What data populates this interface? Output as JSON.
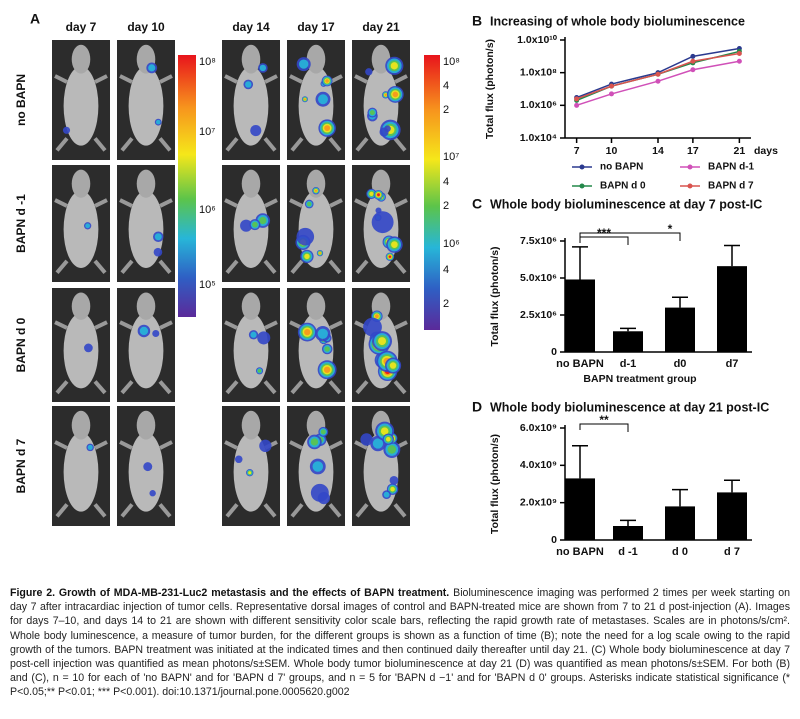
{
  "panel_a": {
    "label": "A",
    "days": [
      "day 7",
      "day 10",
      "day 14",
      "day 17",
      "day 21"
    ],
    "groups": [
      "no BAPN",
      "BAPN d -1",
      "BAPN d 0",
      "BAPN d 7"
    ],
    "scale_left": [
      "10⁸",
      "10⁷",
      "10⁶",
      "10⁵"
    ],
    "scale_right": [
      "10⁸",
      "4",
      "2",
      "10⁷",
      "4",
      "2",
      "10⁶",
      "4",
      "2"
    ]
  },
  "chart_data": [
    {
      "type": "line",
      "panel": "B",
      "title": "Increasing of whole body bioluminescence",
      "y_label": "Total flux (photon/s)",
      "x_label": "days",
      "log_y": true,
      "x": [
        7,
        10,
        14,
        17,
        21
      ],
      "xlim": [
        6,
        22
      ],
      "xticks": [
        7,
        10,
        14,
        17,
        21
      ],
      "ylim": [
        10000,
        10000000000
      ],
      "yticks": [
        {
          "value": 10000,
          "label": "1.0x10⁴"
        },
        {
          "value": 1000000,
          "label": "1.0x10⁶"
        },
        {
          "value": 100000000,
          "label": "1.0x10⁸"
        },
        {
          "value": 10000000000,
          "label": "1.0x10¹⁰"
        }
      ],
      "series": [
        {
          "name": "no BAPN",
          "color": "#2b3a8f",
          "values": [
            3000000,
            20000000,
            100000000,
            1000000000,
            3000000000
          ]
        },
        {
          "name": "BAPN d-1",
          "color": "#d050b8",
          "values": [
            1000000,
            5000000,
            30000000,
            150000000,
            500000000
          ]
        },
        {
          "name": "BAPN d 0",
          "color": "#23884a",
          "values": [
            2000000,
            15000000,
            80000000,
            400000000,
            2000000000
          ]
        },
        {
          "name": "BAPN d 7",
          "color": "#d9534f",
          "values": [
            2500000,
            15000000,
            80000000,
            500000000,
            1500000000
          ]
        }
      ]
    },
    {
      "type": "bar",
      "panel": "C",
      "title": "Whole body bioluminescence at day 7 post-IC",
      "y_label": "Total flux (photon/s)",
      "x_label": "BAPN treatment group",
      "color": "#000000",
      "categories": [
        "no BAPN",
        "d-1",
        "d0",
        "d7"
      ],
      "values": [
        4900000,
        1400000,
        3000000,
        5800000
      ],
      "errors": [
        2200000,
        200000,
        700000,
        1400000
      ],
      "ylim": [
        0,
        7500000
      ],
      "yticks": [
        0,
        {
          "value": 2500000,
          "label": "2.5x10⁶"
        },
        {
          "value": 5000000,
          "label": "5.0x10⁶"
        },
        {
          "value": 7500000,
          "label": "7.5x10⁶"
        }
      ],
      "annotations": [
        "***",
        "*"
      ]
    },
    {
      "type": "bar",
      "panel": "D",
      "title": "Whole body bioluminescence at day 21 post-IC",
      "y_label": "Total flux (photon/s)",
      "color": "#000000",
      "categories": [
        "no BAPN",
        "d -1",
        "d 0",
        "d 7"
      ],
      "values": [
        3300000000,
        750000000,
        1800000000,
        2550000000
      ],
      "errors": [
        1750000000,
        300000000,
        900000000,
        650000000
      ],
      "ylim": [
        0,
        6000000000
      ],
      "yticks": [
        0,
        {
          "value": 2000000000,
          "label": "2.0x10⁹"
        },
        {
          "value": 4000000000,
          "label": "4.0x10⁹"
        },
        {
          "value": 6000000000,
          "label": "6.0x10⁹"
        }
      ],
      "annotations": [
        "**"
      ]
    }
  ],
  "caption": {
    "title": "Figure 2. Growth of MDA-MB-231-Luc2 metastasis and the effects of BAPN treatment.",
    "text": "Bioluminescence imaging was performed 2 times per week starting on day 7 after intracardiac injection of tumor cells. Representative dorsal images of control and BAPN-treated mice are shown from 7 to 21 d post-injection (A). Images for days 7–10, and days 14 to 21 are shown with different sensitivity color scale bars, reflecting the rapid growth rate of metastases. Scales are in photons/s/cm². Whole body luminescence, a measure of tumor burden, for the different groups is shown as a function of time (B); note the need for a log scale owing to the rapid growth of the tumors. BAPN treatment was initiated at the indicated times and then continued daily thereafter until day 21. (C) Whole body bioluminescence at day 7 post-cell injection was quantified as mean photons/s±SEM. Whole body tumor bioluminescence at day 21 (D) was quantified as mean photons/s±SEM. For both (B) and (C), n = 10 for each of 'no BAPN' and for 'BAPN d 7' groups, and n = 5 for 'BAPN d −1' and for 'BAPN d 0' groups. Asterisks indicate statistical significance (* P<0.05;** P<0.01; *** P<0.001). doi:10.1371/journal.pone.0005620.g002"
  }
}
